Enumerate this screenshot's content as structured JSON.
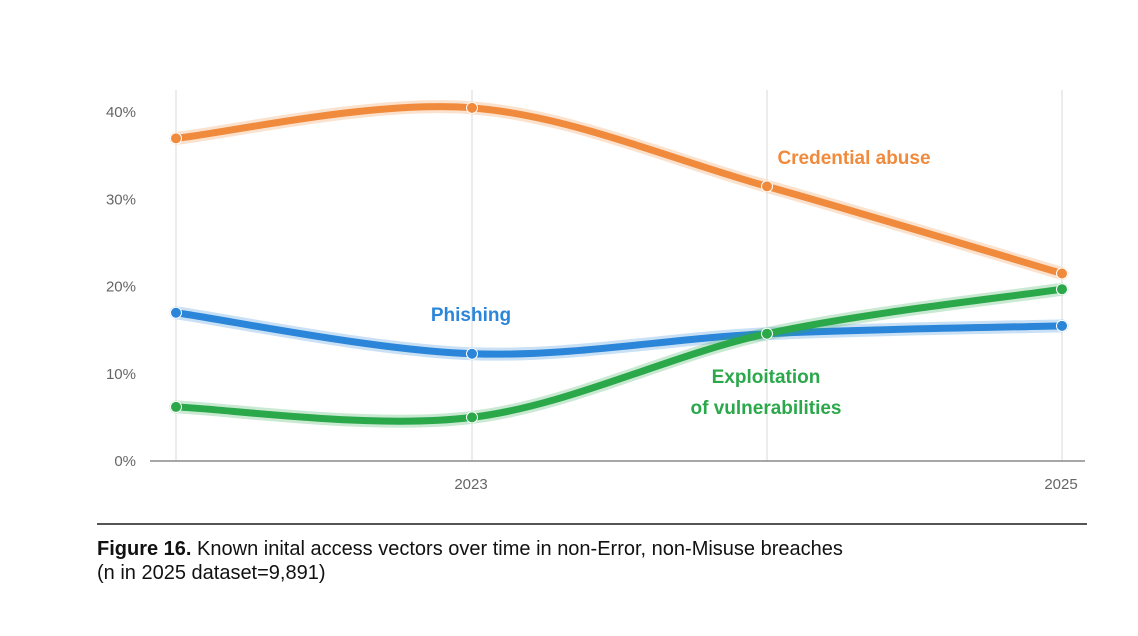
{
  "chart_data": {
    "type": "line",
    "x": [
      "2022",
      "2023",
      "2024",
      "2025"
    ],
    "x_tick_labels": [
      "",
      "2023",
      "",
      "2025"
    ],
    "y_ticks": [
      0,
      10,
      20,
      30,
      40
    ],
    "y_tick_labels": [
      "0%",
      "10%",
      "20%",
      "30%",
      "40%"
    ],
    "ylim": [
      0,
      42
    ],
    "grid": "vertical",
    "series": [
      {
        "name": "Credential abuse",
        "values": [
          37,
          40.5,
          31.5,
          21.5
        ],
        "color": "#f08a3c"
      },
      {
        "name": "Phishing",
        "values": [
          17,
          12.3,
          14.6,
          15.5
        ],
        "color": "#2b86d9"
      },
      {
        "name": "Exploitation of vulnerabilities",
        "values": [
          6.2,
          5.0,
          14.6,
          19.7
        ],
        "color": "#2aa84a"
      }
    ],
    "series_labels": [
      {
        "lines": [
          "Credential abuse"
        ]
      },
      {
        "lines": [
          "Phishing"
        ]
      },
      {
        "lines": [
          "Exploitation",
          "of vulnerabilities"
        ]
      }
    ]
  },
  "caption": {
    "figure_label": "Figure 16.",
    "text": " Known inital access vectors over time in non-Error, non-Misuse breaches",
    "line2": "(n in 2025 dataset=9,891)"
  }
}
